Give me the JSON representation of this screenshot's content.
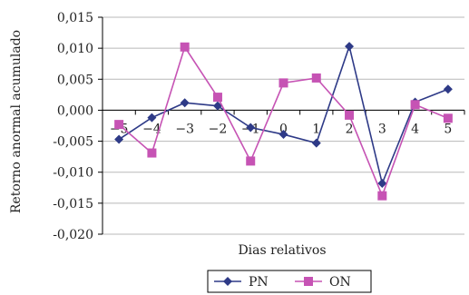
{
  "chart_data": {
    "type": "line",
    "title": "",
    "xlabel": "Dias relativos",
    "ylabel": "Retorno anormal acumulado",
    "categories": [
      "-5",
      "-4",
      "-3",
      "-2",
      "-1",
      "0",
      "1",
      "2",
      "3",
      "4",
      "5"
    ],
    "y_ticks": [
      "0,015",
      "0,010",
      "0,005",
      "0,000",
      "-0,005",
      "-0,010",
      "-0,015",
      "-0,020"
    ],
    "ylim": [
      -0.02,
      0.015
    ],
    "grid": "horizontal",
    "legend_position": "bottom",
    "series": [
      {
        "name": "PN",
        "color": "#2e3a87",
        "marker": "diamond",
        "values": [
          -0.0047,
          -0.0012,
          0.0012,
          0.0007,
          -0.0028,
          -0.0039,
          -0.0053,
          0.0103,
          -0.0118,
          0.0013,
          0.0034
        ]
      },
      {
        "name": "ON",
        "color": "#c653b4",
        "marker": "square",
        "values": [
          -0.0023,
          -0.0069,
          0.0102,
          0.0021,
          -0.0082,
          0.0044,
          0.0052,
          -0.0008,
          -0.0138,
          0.0009,
          -0.0013
        ]
      }
    ]
  }
}
